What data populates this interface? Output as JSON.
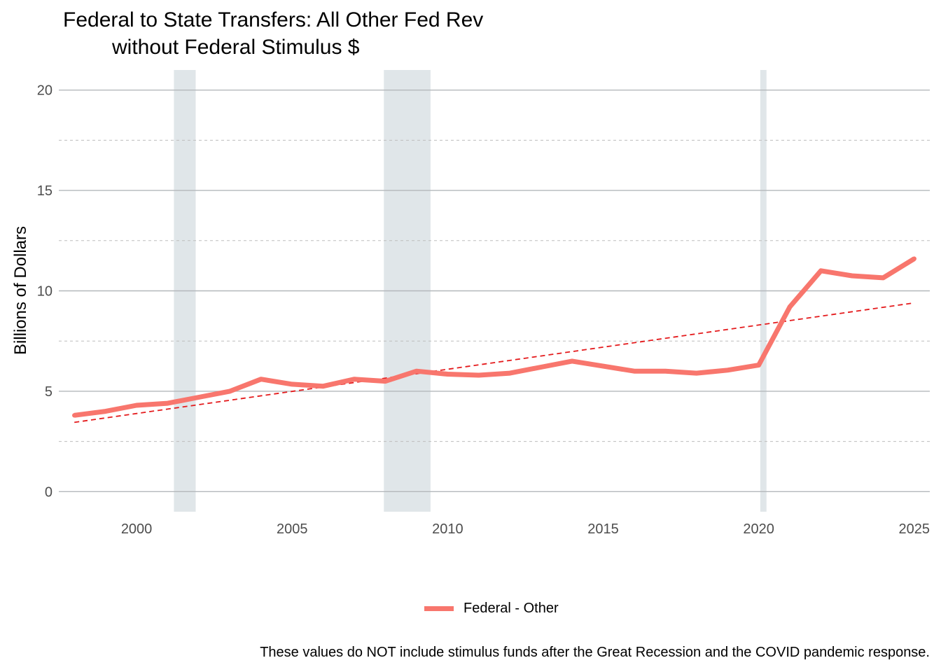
{
  "chart_data": {
    "type": "line",
    "title": "Federal to State Transfers: All Other Fed Rev",
    "subtitle": "without Federal Stimulus $",
    "xlabel": "",
    "ylabel": "Billions of Dollars",
    "xlim": [
      1997.5,
      2025.5
    ],
    "ylim": [
      -1,
      21
    ],
    "x_ticks": [
      2000,
      2005,
      2010,
      2015,
      2020,
      2025
    ],
    "y_ticks": [
      0,
      5,
      10,
      15,
      20
    ],
    "y_minor_ticks": [
      2.5,
      7.5,
      12.5,
      17.5
    ],
    "grid": true,
    "legend_position": "bottom",
    "recession_shading": [
      {
        "start": 2001.2,
        "end": 2001.9
      },
      {
        "start": 2007.95,
        "end": 2009.45
      },
      {
        "start": 2020.05,
        "end": 2020.25
      }
    ],
    "series": [
      {
        "name": "Federal - Other",
        "color": "#F8766D",
        "x": [
          1998,
          1999,
          2000,
          2001,
          2002,
          2003,
          2004,
          2005,
          2006,
          2007,
          2008,
          2009,
          2010,
          2011,
          2012,
          2013,
          2014,
          2015,
          2016,
          2017,
          2018,
          2019,
          2020,
          2021,
          2022,
          2023,
          2024,
          2025
        ],
        "values": [
          3.8,
          4.0,
          4.3,
          4.4,
          4.7,
          5.0,
          5.6,
          5.35,
          5.25,
          5.6,
          5.5,
          6.0,
          5.85,
          5.8,
          5.9,
          6.2,
          6.5,
          6.25,
          6.0,
          6.0,
          5.9,
          6.05,
          6.3,
          9.2,
          11.0,
          10.75,
          10.65,
          11.6
        ]
      }
    ],
    "trend_line": {
      "color": "#E41A1C",
      "style": "dashed",
      "start": {
        "x": 1998,
        "y": 3.45
      },
      "end": {
        "x": 2025,
        "y": 9.4
      }
    },
    "caption": "These values do NOT include stimulus funds after the Great Recession and the COVID pandemic response."
  }
}
